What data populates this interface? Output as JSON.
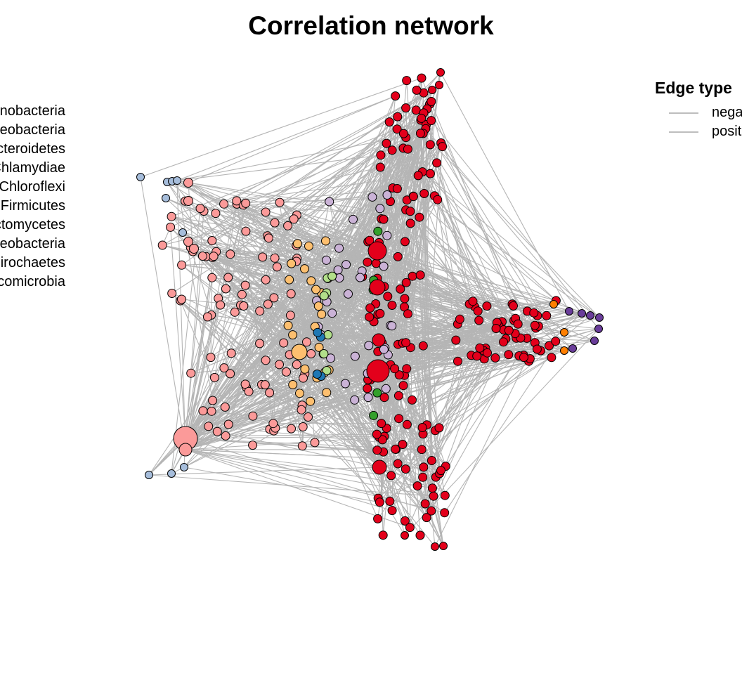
{
  "title": "Correlation network",
  "legend_phylum": {
    "items": [
      {
        "label": "Actinobacteria"
      },
      {
        "label": "Alphaproteobacteria"
      },
      {
        "label": "Bacteroidetes"
      },
      {
        "label": "Chlamydiae"
      },
      {
        "label": "Chloroflexi"
      },
      {
        "label": "Firmicutes"
      },
      {
        "label": "Planctomycetes"
      },
      {
        "label": "Proteobacteria"
      },
      {
        "label": "Spirochaetes"
      },
      {
        "label": "Verrucomicrobia"
      }
    ]
  },
  "legend_edges": {
    "title": "Edge type",
    "items": [
      {
        "label": "negative",
        "color": "#b5b5b5"
      },
      {
        "label": "positive",
        "color": "#b5b5b5"
      }
    ]
  },
  "colors": {
    "edge": "#b5b5b5",
    "red": "#e3001b",
    "pink": "#fb9a99",
    "light_blue": "#a6bddb",
    "purple": "#cab2d6",
    "orange": "#fdbf6f",
    "light_green": "#b2df8a",
    "dark_blue": "#1f78b4",
    "green": "#33a02c",
    "bright_orange": "#ff7f00",
    "dark_purple": "#6a3d9a"
  }
}
